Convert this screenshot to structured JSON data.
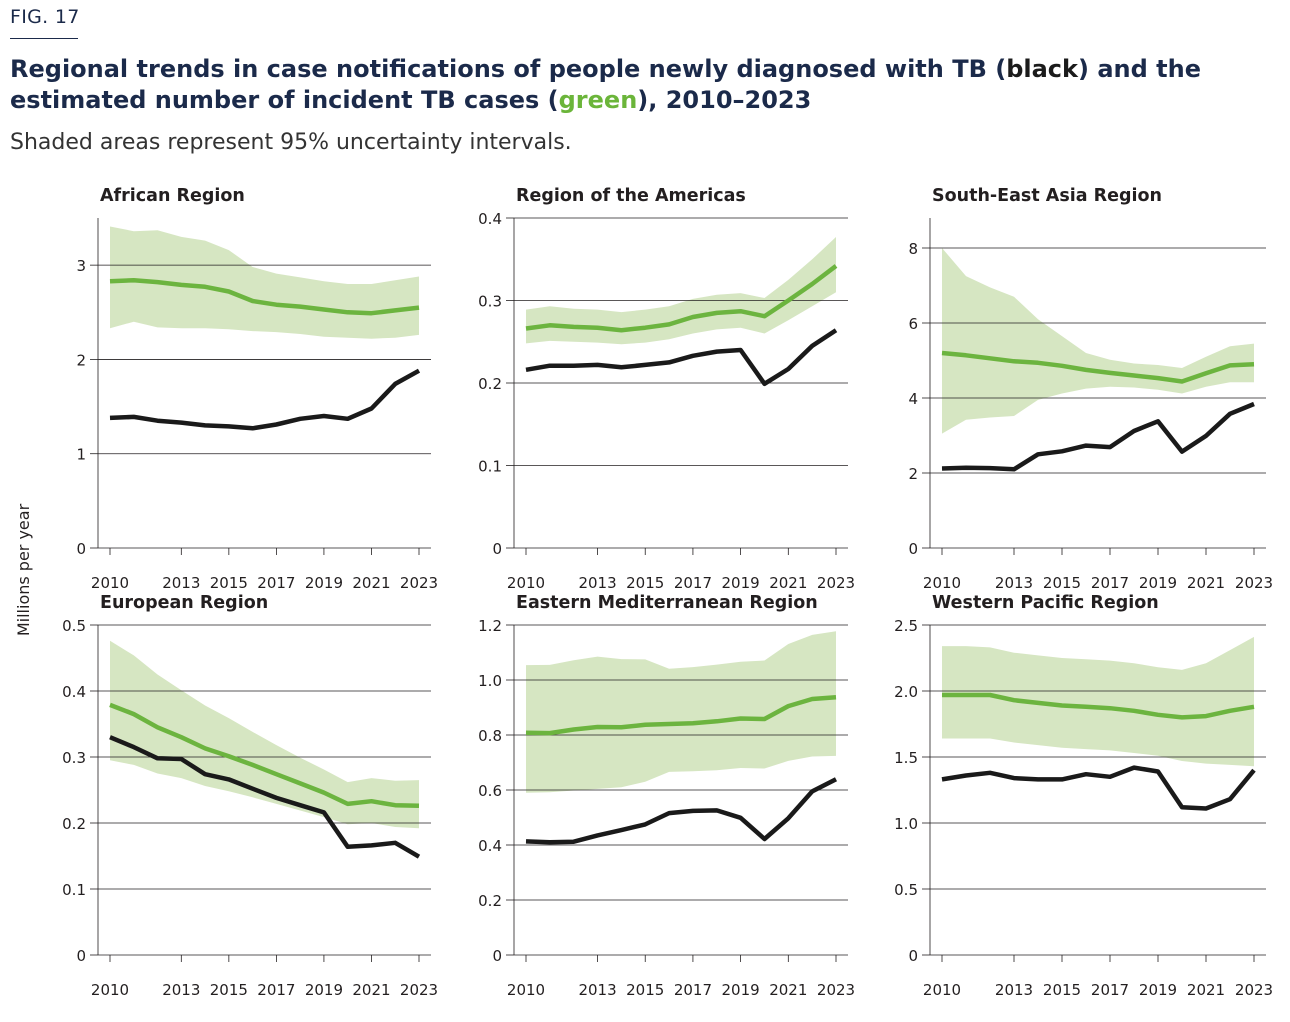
{
  "figure": {
    "label": "FIG. 17",
    "title_part1": "Regional trends in case notifications of people newly diagnosed with TB (",
    "title_black": "black",
    "title_part2": ") and the estimated number of incident TB cases (",
    "title_green": "green",
    "title_part3": "), 2010–2023",
    "subtitle": "Shaded areas represent 95% uncertainty intervals.",
    "ylabel": "Millions per year"
  },
  "colors": {
    "notifications": "#1a1a1a",
    "incidence": "#6cb43f",
    "interval": "#d6e6c2",
    "grid": "#231f20",
    "title": "#1b2a4a"
  },
  "chart_data": [
    {
      "type": "line",
      "title": "African Region",
      "x": [
        2010,
        2011,
        2012,
        2013,
        2014,
        2015,
        2016,
        2017,
        2018,
        2019,
        2020,
        2021,
        2022,
        2023
      ],
      "xticks": [
        "2010",
        "2013",
        "2015",
        "2017",
        "2019",
        "2021",
        "2023"
      ],
      "ylim": [
        0,
        3.5
      ],
      "yticks": [
        "0",
        "1",
        "2",
        "3"
      ],
      "series": [
        {
          "role": "notifications",
          "values": [
            1.38,
            1.39,
            1.35,
            1.33,
            1.3,
            1.29,
            1.27,
            1.31,
            1.37,
            1.4,
            1.37,
            1.48,
            1.74,
            1.88
          ]
        },
        {
          "role": "incidence",
          "values": [
            2.83,
            2.84,
            2.82,
            2.79,
            2.77,
            2.72,
            2.62,
            2.58,
            2.56,
            2.53,
            2.5,
            2.49,
            2.52,
            2.55
          ],
          "lower": [
            2.33,
            2.4,
            2.34,
            2.33,
            2.33,
            2.32,
            2.3,
            2.29,
            2.27,
            2.24,
            2.23,
            2.22,
            2.23,
            2.26
          ],
          "upper": [
            3.41,
            3.36,
            3.37,
            3.3,
            3.26,
            3.16,
            2.98,
            2.91,
            2.87,
            2.83,
            2.8,
            2.8,
            2.84,
            2.88
          ]
        }
      ]
    },
    {
      "type": "line",
      "title": "Region of the Americas",
      "x": [
        2010,
        2011,
        2012,
        2013,
        2014,
        2015,
        2016,
        2017,
        2018,
        2019,
        2020,
        2021,
        2022,
        2023
      ],
      "xticks": [
        "2010",
        "2013",
        "2015",
        "2017",
        "2019",
        "2021",
        "2023"
      ],
      "ylim": [
        0,
        0.4
      ],
      "yticks": [
        "0",
        "0.1",
        "0.2",
        "0.3",
        "0.4"
      ],
      "series": [
        {
          "role": "notifications",
          "values": [
            0.216,
            0.221,
            0.221,
            0.222,
            0.219,
            0.222,
            0.225,
            0.233,
            0.238,
            0.24,
            0.199,
            0.217,
            0.245,
            0.264
          ]
        },
        {
          "role": "incidence",
          "values": [
            0.266,
            0.27,
            0.268,
            0.267,
            0.264,
            0.267,
            0.271,
            0.28,
            0.285,
            0.287,
            0.281,
            0.3,
            0.32,
            0.342
          ],
          "lower": [
            0.248,
            0.251,
            0.25,
            0.249,
            0.247,
            0.249,
            0.253,
            0.26,
            0.265,
            0.267,
            0.26,
            0.276,
            0.293,
            0.31
          ],
          "upper": [
            0.289,
            0.293,
            0.29,
            0.289,
            0.286,
            0.289,
            0.293,
            0.302,
            0.307,
            0.309,
            0.303,
            0.325,
            0.35,
            0.377
          ]
        }
      ]
    },
    {
      "type": "line",
      "title": "South-East Asia Region",
      "x": [
        2010,
        2011,
        2012,
        2013,
        2014,
        2015,
        2016,
        2017,
        2018,
        2019,
        2020,
        2021,
        2022,
        2023
      ],
      "xticks": [
        "2010",
        "2013",
        "2015",
        "2017",
        "2019",
        "2021",
        "2023"
      ],
      "ylim": [
        0,
        8.8
      ],
      "yticks": [
        "0",
        "2",
        "4",
        "6",
        "8"
      ],
      "series": [
        {
          "role": "notifications",
          "values": [
            2.12,
            2.14,
            2.13,
            2.1,
            2.5,
            2.58,
            2.73,
            2.69,
            3.12,
            3.38,
            2.57,
            2.99,
            3.58,
            3.84
          ]
        },
        {
          "role": "incidence",
          "values": [
            5.2,
            5.14,
            5.06,
            4.98,
            4.94,
            4.86,
            4.75,
            4.67,
            4.6,
            4.53,
            4.44,
            4.66,
            4.87,
            4.9
          ],
          "lower": [
            3.05,
            3.42,
            3.48,
            3.52,
            3.95,
            4.12,
            4.25,
            4.3,
            4.28,
            4.22,
            4.12,
            4.3,
            4.42,
            4.42
          ],
          "upper": [
            8.0,
            7.25,
            6.95,
            6.7,
            6.1,
            5.65,
            5.2,
            5.02,
            4.92,
            4.88,
            4.8,
            5.1,
            5.38,
            5.45
          ]
        }
      ]
    },
    {
      "type": "line",
      "title": "European Region",
      "x": [
        2010,
        2011,
        2012,
        2013,
        2014,
        2015,
        2016,
        2017,
        2018,
        2019,
        2020,
        2021,
        2022,
        2023
      ],
      "xticks": [
        "2010",
        "2013",
        "2015",
        "2017",
        "2019",
        "2021",
        "2023"
      ],
      "ylim": [
        0,
        0.5
      ],
      "yticks": [
        "0",
        "0.1",
        "0.2",
        "0.3",
        "0.4",
        "0.5"
      ],
      "series": [
        {
          "role": "notifications",
          "values": [
            0.33,
            0.315,
            0.298,
            0.297,
            0.274,
            0.266,
            0.252,
            0.238,
            0.227,
            0.216,
            0.164,
            0.166,
            0.17,
            0.149
          ]
        },
        {
          "role": "incidence",
          "values": [
            0.379,
            0.365,
            0.345,
            0.33,
            0.313,
            0.301,
            0.288,
            0.274,
            0.26,
            0.246,
            0.229,
            0.233,
            0.227,
            0.226
          ],
          "lower": [
            0.295,
            0.288,
            0.275,
            0.268,
            0.256,
            0.248,
            0.239,
            0.229,
            0.219,
            0.209,
            0.198,
            0.2,
            0.194,
            0.192
          ],
          "upper": [
            0.476,
            0.454,
            0.425,
            0.401,
            0.378,
            0.359,
            0.338,
            0.318,
            0.299,
            0.281,
            0.262,
            0.268,
            0.264,
            0.265
          ]
        }
      ]
    },
    {
      "type": "line",
      "title": "Eastern Mediterranean Region",
      "x": [
        2010,
        2011,
        2012,
        2013,
        2014,
        2015,
        2016,
        2017,
        2018,
        2019,
        2020,
        2021,
        2022,
        2023
      ],
      "xticks": [
        "2010",
        "2013",
        "2015",
        "2017",
        "2019",
        "2021",
        "2023"
      ],
      "ylim": [
        0,
        1.2
      ],
      "yticks": [
        "0",
        "0.2",
        "0.4",
        "0.6",
        "0.8",
        "1.0",
        "1.2"
      ],
      "series": [
        {
          "role": "notifications",
          "values": [
            0.413,
            0.41,
            0.412,
            0.435,
            0.454,
            0.475,
            0.516,
            0.524,
            0.526,
            0.499,
            0.422,
            0.497,
            0.595,
            0.639
          ]
        },
        {
          "role": "incidence",
          "values": [
            0.808,
            0.807,
            0.82,
            0.829,
            0.828,
            0.837,
            0.84,
            0.843,
            0.85,
            0.86,
            0.858,
            0.905,
            0.931,
            0.937
          ],
          "lower": [
            0.59,
            0.592,
            0.598,
            0.604,
            0.61,
            0.63,
            0.666,
            0.668,
            0.672,
            0.68,
            0.678,
            0.706,
            0.722,
            0.724
          ],
          "upper": [
            1.054,
            1.055,
            1.072,
            1.085,
            1.076,
            1.075,
            1.041,
            1.047,
            1.056,
            1.066,
            1.071,
            1.131,
            1.164,
            1.177
          ]
        }
      ]
    },
    {
      "type": "line",
      "title": "Western Pacific Region",
      "x": [
        2010,
        2011,
        2012,
        2013,
        2014,
        2015,
        2016,
        2017,
        2018,
        2019,
        2020,
        2021,
        2022,
        2023
      ],
      "xticks": [
        "2010",
        "2013",
        "2015",
        "2017",
        "2019",
        "2021",
        "2023"
      ],
      "ylim": [
        0,
        2.5
      ],
      "yticks": [
        "0",
        "0.5",
        "1.0",
        "1.5",
        "2.0",
        "2.5"
      ],
      "series": [
        {
          "role": "notifications",
          "values": [
            1.33,
            1.36,
            1.38,
            1.34,
            1.33,
            1.33,
            1.37,
            1.35,
            1.42,
            1.39,
            1.12,
            1.11,
            1.18,
            1.4
          ]
        },
        {
          "role": "incidence",
          "values": [
            1.97,
            1.97,
            1.97,
            1.93,
            1.91,
            1.89,
            1.88,
            1.87,
            1.85,
            1.82,
            1.8,
            1.81,
            1.85,
            1.88
          ],
          "lower": [
            1.64,
            1.64,
            1.64,
            1.61,
            1.59,
            1.57,
            1.56,
            1.55,
            1.53,
            1.51,
            1.47,
            1.45,
            1.44,
            1.43
          ],
          "upper": [
            2.34,
            2.34,
            2.33,
            2.29,
            2.27,
            2.25,
            2.24,
            2.23,
            2.21,
            2.18,
            2.16,
            2.21,
            2.31,
            2.41
          ]
        }
      ]
    }
  ]
}
